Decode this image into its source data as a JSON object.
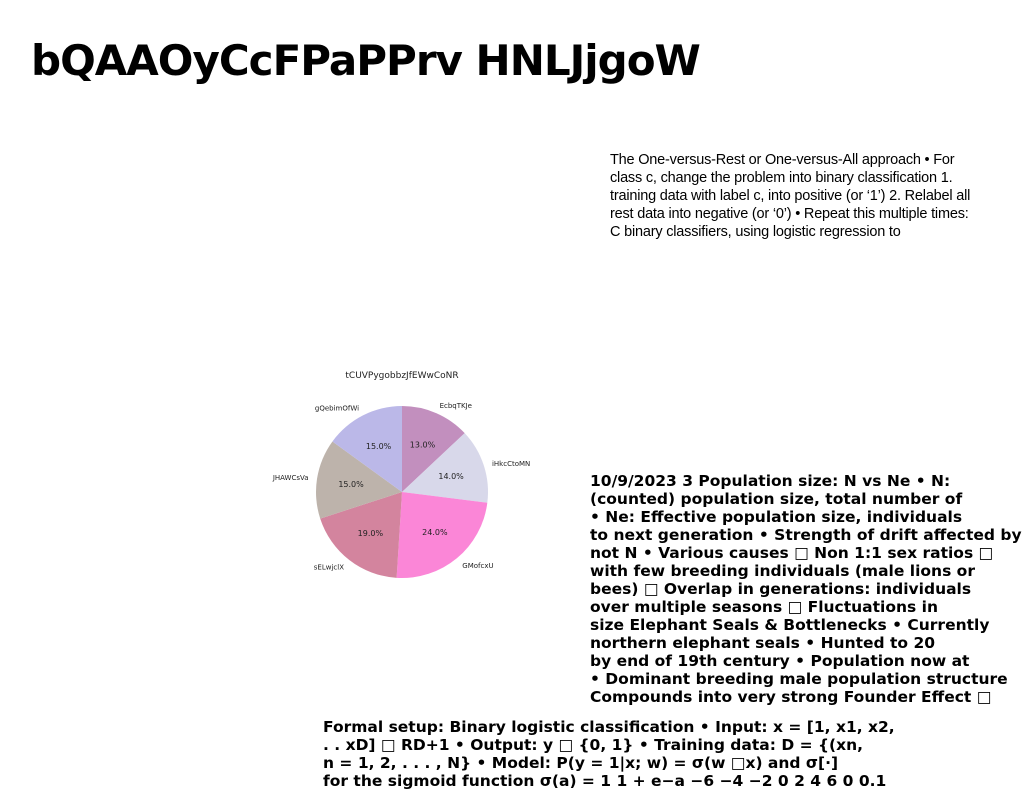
{
  "title": "bQAAOyCcFPaPPrv HNLJjgoW",
  "top_paragraph": [
    "The One-versus-Rest or One-versus-All approach • For",
    "class c, change the problem into binary classification 1.",
    "training data with label c, into positive (or ‘1’) 2. Relabel all",
    "rest data into negative (or ‘0’) • Repeat this multiple times:",
    "C binary classifiers, using logistic regression to"
  ],
  "middle_paragraph": [
    "10/9/2023 3 Population size: N vs Ne • N:",
    "(counted) population size, total number of",
    "• Ne: Effective population size, individuals",
    "to next generation • Strength of drift affected by",
    "not N • Various causes □ Non 1:1 sex ratios □",
    "with few breeding individuals (male lions or",
    "bees) □ Overlap in generations: individuals",
    "over multiple seasons □ Fluctuations in",
    "size Elephant Seals & Bottlenecks • Currently",
    "northern elephant seals • Hunted to 20",
    "by end of 19th century • Population now at",
    "• Dominant breeding male population structure",
    "Compounds into very strong Founder Effect □"
  ],
  "bottom_paragraph": [
    "Formal setup: Binary logistic classification • Input: x = [1, x1, x2,",
    ". . xD] □ RD+1 • Output: y □ {0, 1} • Training data: D = {(xn,",
    "n = 1, 2, . . . , N} • Model: P(y = 1|x; w) = σ(w □x) and σ[·]",
    "for the sigmoid function σ(a) = 1 1 + e−a −6 −4 −2 0 2 4 6 0 0.1"
  ],
  "chart_data": {
    "type": "pie",
    "title": "tCUVPygobbzJfEWwCoNR",
    "categories": [
      "EcbqTKJe",
      "iHkcCtoMN",
      "GMofcxU",
      "sELwjclX",
      "JHAWCsVa",
      "gQebimOfWi"
    ],
    "values": [
      13.0,
      14.0,
      24.0,
      19.0,
      15.0,
      15.0
    ],
    "value_labels": [
      "13.0%",
      "14.0%",
      "24.0%",
      "19.0%",
      "15.0%",
      "15.0%"
    ],
    "colors": [
      "#c28fbe",
      "#d8d8ea",
      "#fb86d7",
      "#d3849e",
      "#bdb3ab",
      "#bbb8e8"
    ],
    "start_angle_deg": 90,
    "direction": "clockwise",
    "legend": "none"
  }
}
